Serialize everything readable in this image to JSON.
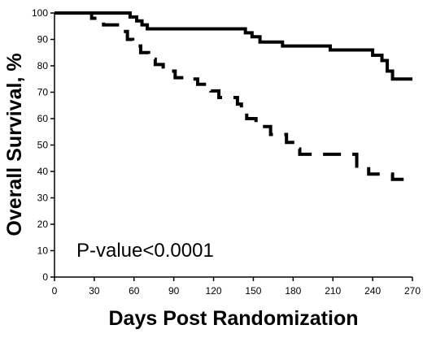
{
  "chart_data": {
    "type": "line",
    "title": "",
    "xlabel": "Days Post Randomization",
    "ylabel": "Overall Survival, %",
    "xlim": [
      0,
      270
    ],
    "ylim": [
      0,
      100
    ],
    "x_ticks": [
      0,
      30,
      60,
      90,
      120,
      150,
      180,
      210,
      240,
      270
    ],
    "y_ticks": [
      0,
      10,
      20,
      30,
      40,
      50,
      60,
      70,
      80,
      90,
      100
    ],
    "grid": false,
    "legend": "none",
    "annotation": "P-value<0.0001",
    "series": [
      {
        "style": "solid",
        "color": "#000000",
        "x": [
          0,
          53,
          57,
          62,
          66,
          70,
          140,
          144,
          149,
          155,
          172,
          203,
          208,
          240,
          247,
          251,
          255,
          270
        ],
        "y": [
          100,
          100,
          98.5,
          97,
          95.5,
          94,
          94,
          92.5,
          91,
          89,
          87.5,
          87.5,
          86,
          84,
          82,
          78,
          75,
          75
        ]
      },
      {
        "style": "dashed",
        "color": "#000000",
        "x": [
          0,
          28,
          37,
          51,
          55,
          59,
          65,
          71,
          76,
          82,
          91,
          101,
          108,
          118,
          124,
          138,
          141,
          145,
          152,
          163,
          175,
          181,
          185,
          223,
          228,
          232,
          237,
          255,
          265
        ],
        "y": [
          100,
          98,
          95.5,
          93,
          90,
          87.5,
          85,
          82.5,
          80.5,
          78,
          75.5,
          75,
          73,
          70.5,
          68,
          65.5,
          62.5,
          60,
          57,
          54,
          51,
          48.5,
          46.5,
          46.5,
          42,
          41,
          39,
          37,
          36
        ]
      }
    ]
  }
}
